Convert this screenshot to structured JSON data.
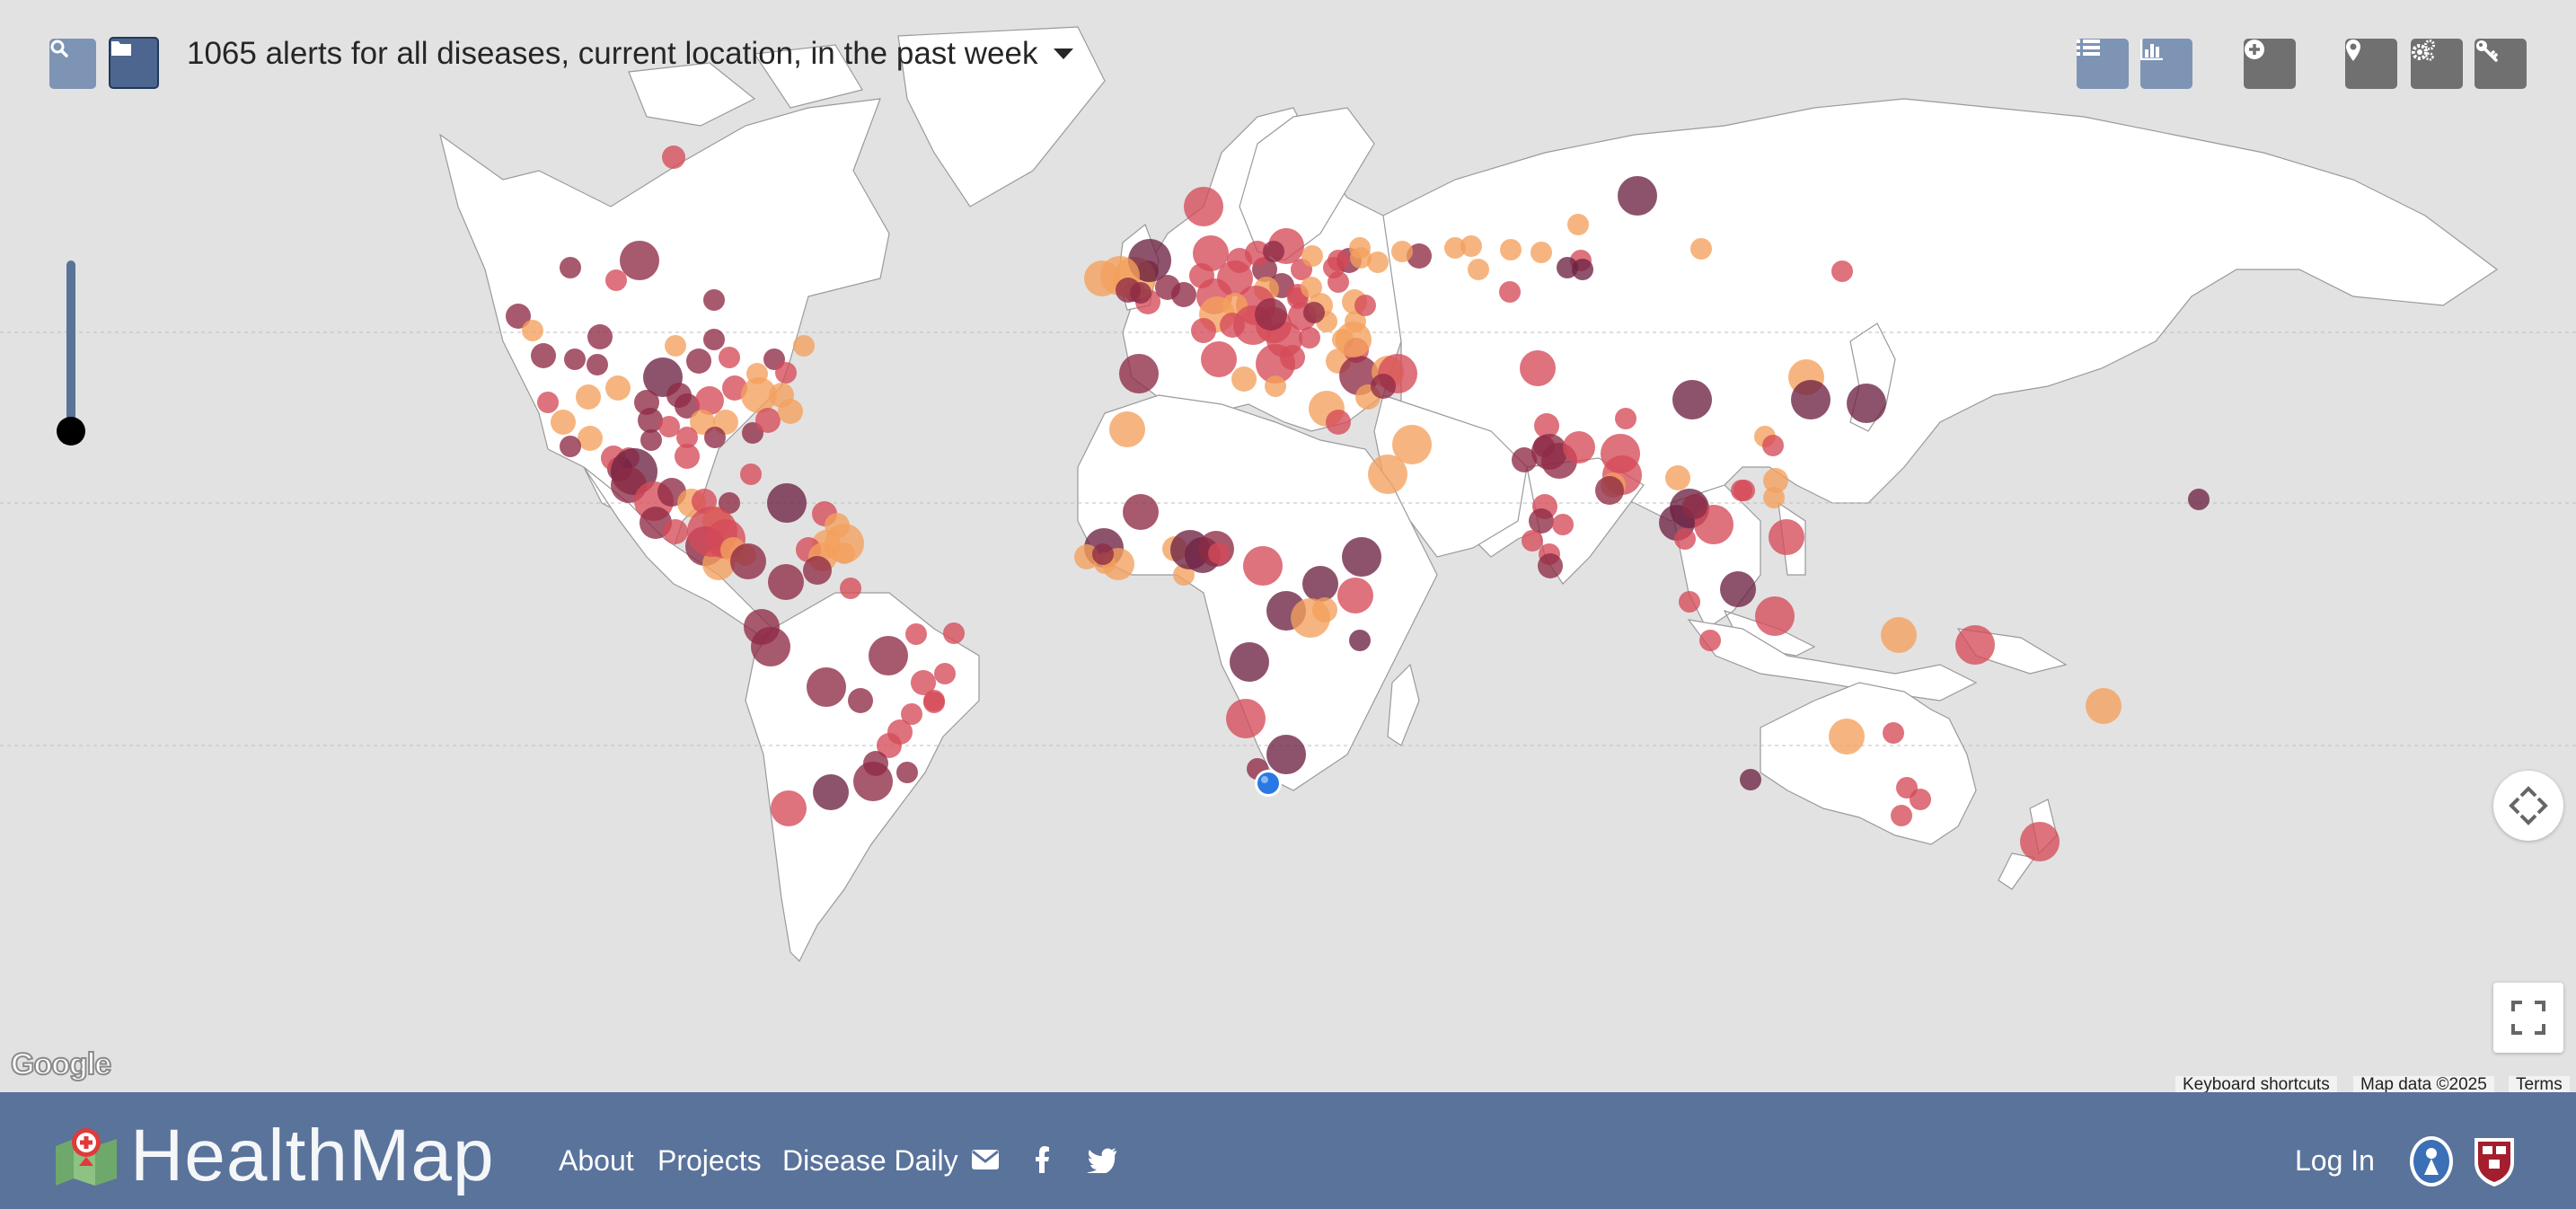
{
  "header": {
    "headline": "1065 alerts for all diseases, current location, in the past week",
    "search_icon": "search-icon",
    "folder_icon": "folder-icon",
    "list_icon": "list-icon",
    "chart_icon": "bar-chart-icon",
    "add_icon": "plus-circle-icon",
    "pin_icon": "map-marker-icon",
    "settings_icon": "cogs-icon",
    "key_icon": "key-icon"
  },
  "map": {
    "google_logo": "Google",
    "keyboard_shortcuts": "Keyboard shortcuts",
    "map_data": "Map data ©2025",
    "terms": "Terms",
    "alert_colors": [
      "#f3a05c",
      "#d54a58",
      "#8e2a45",
      "#6d2343"
    ],
    "current_location_color": "#2a78e4"
  },
  "footer": {
    "logo_text": "HealthMap",
    "nav": [
      "About",
      "Projects",
      "Disease Daily"
    ],
    "email_icon": "envelope-icon",
    "facebook_icon": "facebook-icon",
    "twitter_icon": "twitter-icon",
    "login": "Log In",
    "partner_icons": [
      "boston-childrens-seal-icon",
      "harvard-shield-icon"
    ]
  }
}
